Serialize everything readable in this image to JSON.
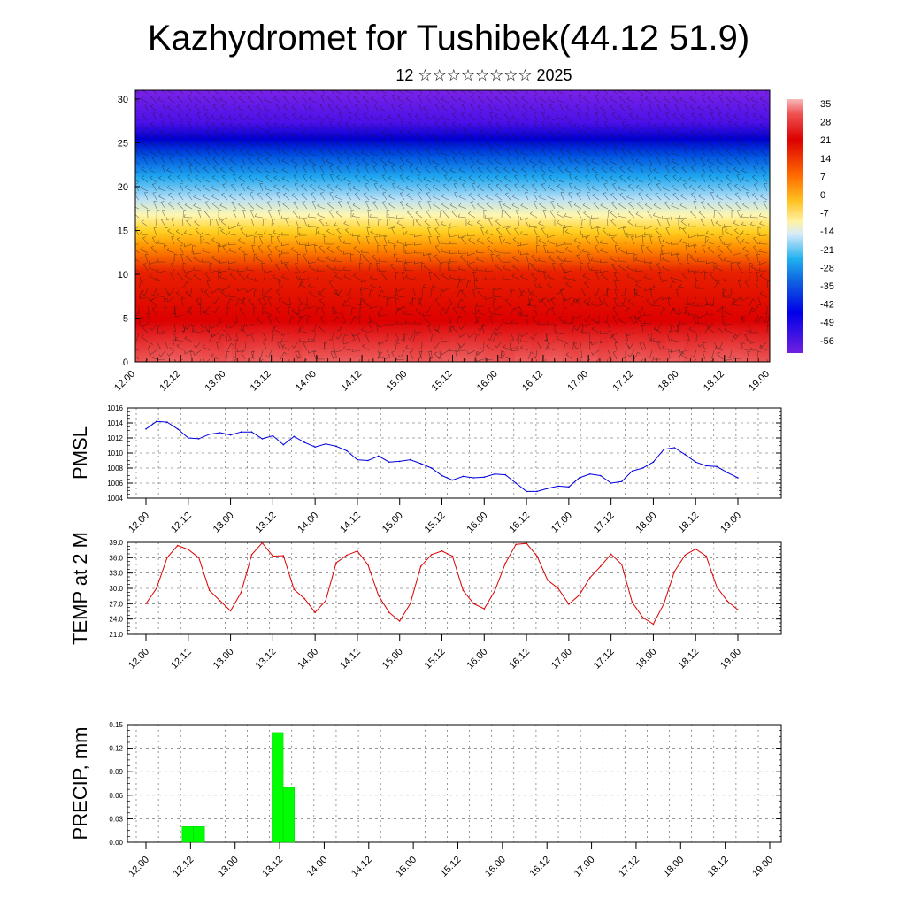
{
  "title": "Kazhydromet for Tushibek(44.12 51.9)",
  "subtitle": "12 ☆☆☆☆☆☆☆☆ 2025",
  "time_labels": [
    "12.00",
    "12.12",
    "13.00",
    "13.12",
    "14.00",
    "14.12",
    "15.00",
    "15.12",
    "16.00",
    "16.12",
    "17.00",
    "17.12",
    "18.00",
    "18.12",
    "19.00"
  ],
  "colors": {
    "pmsl_line": "#0000dd",
    "temp_line": "#dd0000",
    "precip_bar": "#00ff00"
  },
  "chart_data": [
    {
      "type": "heatmap",
      "name": "cross-section",
      "x": [
        "12.00",
        "12.12",
        "13.00",
        "13.12",
        "14.00",
        "14.12",
        "15.00",
        "15.12",
        "16.00",
        "16.12",
        "17.00",
        "17.12",
        "18.00",
        "18.12",
        "19.00"
      ],
      "ylim": [
        0,
        31
      ],
      "yticks": [
        "0",
        "5",
        "10",
        "15",
        "20",
        "25",
        "30"
      ],
      "colorbar_labels": [
        "35",
        "28",
        "21",
        "14",
        "7",
        "0",
        "-7",
        "-14",
        "-21",
        "-28",
        "-35",
        "-42",
        "-49",
        "-56"
      ],
      "value_range": [
        -60,
        38
      ],
      "overlay": "wind barbs"
    },
    {
      "type": "line",
      "name": "PMSL",
      "ylabel": "PMSL",
      "ylim": [
        1004,
        1016
      ],
      "yticks": [
        "1004",
        "1006",
        "1008",
        "1010",
        "1012",
        "1014",
        "1016"
      ],
      "grid": true,
      "values": [
        1013.2,
        1014.2,
        1014.1,
        1013.2,
        1012.0,
        1011.9,
        1012.5,
        1012.7,
        1012.4,
        1012.8,
        1012.8,
        1011.9,
        1012.3,
        1011.1,
        1012.2,
        1011.4,
        1010.8,
        1011.2,
        1010.9,
        1010.3,
        1009.1,
        1009.0,
        1009.6,
        1008.8,
        1008.9,
        1009.1,
        1008.6,
        1008.0,
        1007.0,
        1006.4,
        1006.9,
        1006.7,
        1006.8,
        1007.2,
        1007.1,
        1006.0,
        1004.9,
        1004.9,
        1005.3,
        1005.6,
        1005.5,
        1006.7,
        1007.2,
        1007.0,
        1006.0,
        1006.2,
        1007.6,
        1008.0,
        1008.8,
        1010.5,
        1010.7,
        1009.8,
        1008.8,
        1008.3,
        1008.2,
        1007.4,
        1006.7
      ]
    },
    {
      "type": "line",
      "name": "TEMP",
      "ylabel": "TEMP at 2 M",
      "ylim": [
        21,
        39
      ],
      "yticks": [
        "21.0",
        "24.0",
        "27.0",
        "30.0",
        "33.0",
        "36.0",
        "39.0"
      ],
      "grid": true,
      "values": [
        27.0,
        30.0,
        36.0,
        38.4,
        37.6,
        36.0,
        29.6,
        27.6,
        25.6,
        29.2,
        36.6,
        38.9,
        36.3,
        36.4,
        29.8,
        28.0,
        25.3,
        27.6,
        35.0,
        36.5,
        37.3,
        34.6,
        28.6,
        25.3,
        23.6,
        27.0,
        34.3,
        36.6,
        37.3,
        36.3,
        29.6,
        27.0,
        26.0,
        29.5,
        34.9,
        38.6,
        38.8,
        36.3,
        31.6,
        30.0,
        26.9,
        28.7,
        32.1,
        34.3,
        36.7,
        34.7,
        27.3,
        24.3,
        23.0,
        27.0,
        33.3,
        36.5,
        37.7,
        36.3,
        30.3,
        27.5,
        25.8
      ]
    },
    {
      "type": "bar",
      "name": "PRECIP",
      "ylabel": "PRECIP, mm",
      "ylim": [
        0,
        0.15
      ],
      "yticks": [
        "0.00",
        "0.03",
        "0.06",
        "0.09",
        "0.12",
        "0.15"
      ],
      "grid": true,
      "bars": [
        {
          "x": 4,
          "value": 0.02
        },
        {
          "x": 5,
          "value": 0.02
        },
        {
          "x": 12,
          "value": 0.14
        },
        {
          "x": 13,
          "value": 0.07
        }
      ]
    }
  ]
}
